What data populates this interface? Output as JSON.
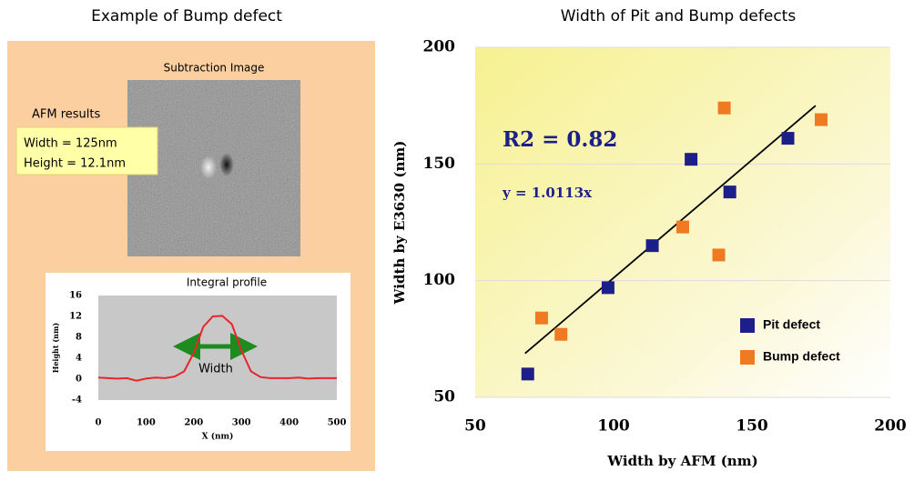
{
  "left_panel": {
    "title": "Example of Bump defect",
    "image_label": "Subtraction Image",
    "afm_heading": "AFM results",
    "afm_width": "Width = 125nm",
    "afm_height": "Height = 12.1nm"
  },
  "chart_data": [
    {
      "type": "line",
      "title": "Integral profile",
      "x_label": "X (nm)",
      "y_label": "Height (nm)",
      "annotation": "Width",
      "x": [
        0,
        20,
        40,
        60,
        80,
        100,
        120,
        140,
        160,
        180,
        200,
        220,
        240,
        260,
        280,
        300,
        320,
        340,
        360,
        380,
        400,
        420,
        440,
        460,
        480,
        500
      ],
      "series": [
        {
          "color": "#e8262a",
          "values": [
            0.3,
            0.2,
            0.1,
            0.2,
            -0.3,
            0.1,
            0.3,
            0.2,
            0.5,
            1.5,
            5,
            10,
            12,
            12.1,
            10.5,
            5.5,
            1.5,
            0.4,
            0.2,
            0.2,
            0.2,
            0.3,
            0.1,
            0.2,
            0.2,
            0.2
          ]
        }
      ],
      "xlim": [
        0,
        500
      ],
      "xticks": [
        0,
        100,
        200,
        300,
        400,
        500
      ],
      "ylim": [
        -4,
        16
      ],
      "yticks": [
        -4,
        0,
        4,
        8,
        12,
        16
      ]
    },
    {
      "type": "scatter",
      "title": "Width of Pit and Bump defects",
      "x_label": "Width by AFM (nm)",
      "y_label": "Width by E3630 (nm)",
      "annotations": [
        "R2 = 0.82",
        "y = 1.0113x"
      ],
      "series": [
        {
          "name": "Pit defect",
          "color": "#1c1f8a",
          "x": [
            69,
            98,
            114,
            128,
            142,
            163
          ],
          "values": [
            60,
            97,
            115,
            152,
            138,
            161
          ]
        },
        {
          "name": "Bump defect",
          "color": "#f07a22",
          "x": [
            74,
            81,
            125,
            138,
            140,
            175
          ],
          "values": [
            84,
            77,
            123,
            111,
            174,
            169
          ]
        }
      ],
      "trendline": {
        "color": "#000000",
        "x": [
          68,
          173
        ],
        "values": [
          68.8,
          175
        ]
      },
      "xlim": [
        50,
        200
      ],
      "xticks": [
        50,
        100,
        150,
        200
      ],
      "ylim": [
        50,
        200
      ],
      "yticks": [
        50,
        100,
        150,
        200
      ],
      "legend": "lower-right"
    }
  ]
}
